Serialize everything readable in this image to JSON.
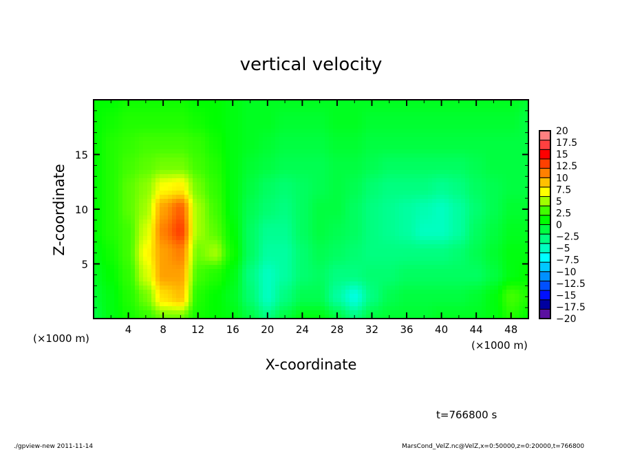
{
  "chart_data": {
    "type": "heatmap",
    "title": "vertical velocity",
    "xlabel": "X-coordinate",
    "ylabel": "Z-coordinate",
    "x_unit_label": "(×1000 m)",
    "y_unit_label": "(×1000 m)",
    "xlim": [
      0,
      50
    ],
    "ylim": [
      0,
      20
    ],
    "xticks": [
      4,
      8,
      12,
      16,
      20,
      24,
      28,
      32,
      36,
      40,
      44,
      48
    ],
    "yticks": [
      5,
      10,
      15
    ],
    "x": [
      0,
      2,
      4,
      6,
      8,
      10,
      12,
      14,
      16,
      18,
      20,
      22,
      24,
      26,
      28,
      30,
      32,
      34,
      36,
      38,
      40,
      42,
      44,
      46,
      48,
      50
    ],
    "z": [
      0,
      2,
      4,
      6,
      8,
      10,
      12,
      14,
      16,
      18,
      20
    ],
    "values": [
      [
        -1,
        0.5,
        1.5,
        2.5,
        4,
        4,
        1.5,
        1,
        0.5,
        -1,
        -3,
        -1,
        0.5,
        0.5,
        -1,
        -3,
        -1,
        -0.5,
        -0.5,
        -0.5,
        0,
        0,
        0,
        0.5,
        2,
        1
      ],
      [
        -0.5,
        0.5,
        2,
        4,
        8,
        9,
        2,
        1,
        0,
        -2.5,
        -5,
        -3,
        -1.5,
        -1.5,
        -4,
        -6,
        -3,
        -1.5,
        -1,
        -1,
        -1,
        -1,
        -0.5,
        0.5,
        3,
        2
      ],
      [
        0,
        1,
        2.5,
        6,
        10,
        10,
        3,
        2,
        0.5,
        -3,
        -5,
        -4,
        -2.5,
        -2,
        -3,
        -3,
        -2.5,
        -2.5,
        -2,
        -2,
        -2,
        -2,
        -2,
        -1,
        0.5,
        1
      ],
      [
        0.5,
        1.5,
        3,
        7,
        10,
        11,
        4,
        5,
        1.5,
        -2,
        -4,
        -4,
        -2.5,
        -1.5,
        -2,
        -2.5,
        -3,
        -3,
        -3,
        -3,
        -3,
        -2.5,
        -1.5,
        -0.5,
        0.5,
        0.5
      ],
      [
        1,
        2,
        3,
        6,
        11,
        13,
        5,
        3.5,
        1,
        -2,
        -3.5,
        -3.5,
        -2,
        -1,
        -1.5,
        -2,
        -3,
        -3.5,
        -4,
        -5,
        -5,
        -4,
        -2,
        -1,
        0,
        0
      ],
      [
        1,
        2,
        3.5,
        5,
        10,
        12,
        5,
        3,
        0.5,
        -1.5,
        -2.5,
        -3,
        -2,
        -1,
        -1,
        -2,
        -3,
        -3.5,
        -4,
        -4.5,
        -5,
        -4,
        -2.5,
        -1.5,
        -0.5,
        -0.5
      ],
      [
        1,
        2,
        3.5,
        4.5,
        7,
        7.5,
        4,
        2.5,
        0.5,
        -1,
        -2,
        -2.5,
        -2,
        -1.5,
        -1,
        -1.5,
        -2.5,
        -3,
        -3,
        -3,
        -3.5,
        -3,
        -2,
        -1.5,
        -1,
        -1
      ],
      [
        1,
        2,
        3,
        3.5,
        4,
        4,
        3,
        2,
        0.5,
        -0.5,
        -1,
        -1.5,
        -1.5,
        -1.5,
        -1,
        -1,
        -1.5,
        -2,
        -2,
        -2,
        -2,
        -2,
        -1.5,
        -1,
        -1,
        -1
      ],
      [
        1,
        2,
        2.5,
        3,
        3,
        3,
        2.5,
        1.5,
        0.5,
        0,
        -0.5,
        -1,
        -1,
        -1,
        -0.5,
        -0.5,
        -1,
        -1,
        -1,
        -1,
        -1,
        -1,
        -1,
        -1,
        -1,
        -1
      ],
      [
        1,
        1.5,
        2,
        2,
        2,
        2,
        1.5,
        1,
        0.5,
        0,
        0,
        -0.5,
        -0.5,
        -0.5,
        0,
        0,
        -0.5,
        -0.5,
        -0.5,
        -0.5,
        -0.5,
        -0.5,
        -0.5,
        -0.5,
        -0.5,
        -1
      ],
      [
        1,
        1,
        1.5,
        1.5,
        1.5,
        1.5,
        1,
        1,
        0.5,
        0,
        0,
        0,
        0,
        0,
        0,
        0,
        0,
        0,
        0,
        0,
        0,
        0,
        0,
        0,
        0,
        -0.5
      ]
    ],
    "colorbar": {
      "range": [
        -20,
        20
      ],
      "labels": [
        "20",
        "17.5",
        "15",
        "12.5",
        "10",
        "7.5",
        "5",
        "2.5",
        "0",
        "−2.5",
        "−5",
        "−7.5",
        "−10",
        "−12.5",
        "−15",
        "−17.5",
        "−20"
      ],
      "colors_bottom_to_top": [
        "#5a10a0",
        "#0000a0",
        "#0010ff",
        "#0050ff",
        "#0090ff",
        "#00c8ff",
        "#00ffff",
        "#00ffc0",
        "#00ff80",
        "#00ff40",
        "#00ff00",
        "#40ff00",
        "#a0ff00",
        "#ffff00",
        "#ffc000",
        "#ff8000",
        "#ff4000",
        "#ff0000",
        "#ff4040",
        "#ff8080"
      ]
    },
    "annotation_time": "t=766800 s"
  },
  "footer": {
    "left": "./gpview-new  2011-11-14",
    "right": "MarsCond_VelZ.nc@VelZ,x=0:50000,z=0:20000,t=766800"
  }
}
